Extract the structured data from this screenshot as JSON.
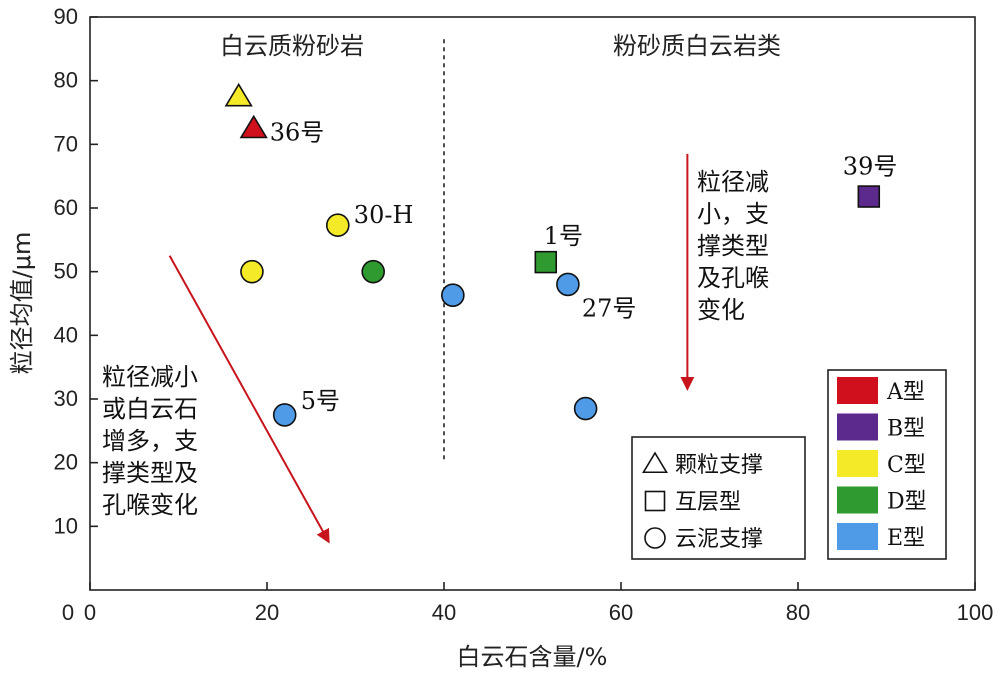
{
  "chart_data": {
    "type": "scatter",
    "xlabel": "白云石含量/%",
    "ylabel": "粒径均值/μm",
    "xlim": [
      0,
      100
    ],
    "ylim": [
      0,
      90
    ],
    "xticks": [
      0,
      20,
      40,
      60,
      80,
      100
    ],
    "yticks": [
      10,
      20,
      30,
      40,
      50,
      60,
      70,
      80,
      90
    ],
    "grid": false,
    "region_divider_x": 40,
    "regions": [
      {
        "label": "白云质粉砂岩"
      },
      {
        "label": "粉砂质白云岩类"
      }
    ],
    "type_colors": {
      "A": "#d0101c",
      "B": "#5b2a8c",
      "C": "#f5ea28",
      "D": "#2f9a2f",
      "E": "#4f9be8"
    },
    "points": [
      {
        "x": 16.8,
        "y": 77.5,
        "shape": "triangle",
        "type": "C",
        "label": ""
      },
      {
        "x": 18.5,
        "y": 72.5,
        "shape": "triangle",
        "type": "A",
        "label": "36号"
      },
      {
        "x": 18.3,
        "y": 50.0,
        "shape": "circle",
        "type": "C",
        "label": ""
      },
      {
        "x": 28.0,
        "y": 57.3,
        "shape": "circle",
        "type": "C",
        "label": "30-H"
      },
      {
        "x": 32.0,
        "y": 50.0,
        "shape": "circle",
        "type": "D",
        "label": ""
      },
      {
        "x": 22.0,
        "y": 27.5,
        "shape": "circle",
        "type": "E",
        "label": "5号"
      },
      {
        "x": 41.0,
        "y": 46.3,
        "shape": "circle",
        "type": "E",
        "label": ""
      },
      {
        "x": 51.5,
        "y": 51.5,
        "shape": "square",
        "type": "D",
        "label": "1号"
      },
      {
        "x": 54.0,
        "y": 48.0,
        "shape": "circle",
        "type": "E",
        "label": "27号"
      },
      {
        "x": 56.0,
        "y": 28.5,
        "shape": "circle",
        "type": "E",
        "label": ""
      },
      {
        "x": 88.0,
        "y": 61.8,
        "shape": "square",
        "type": "B",
        "label": "39号"
      }
    ],
    "annotations": [
      {
        "lines": [
          "粒径减小",
          "或白云石",
          "增多，支",
          "撑类型及",
          "孔喉变化"
        ]
      },
      {
        "lines": [
          "粒径减",
          "小，支",
          "撑类型",
          "及孔喉",
          "变化"
        ]
      }
    ],
    "arrows": [
      {
        "from": [
          9.0,
          52.5
        ],
        "to": [
          27.0,
          7.5
        ]
      },
      {
        "from": [
          67.5,
          68.5
        ],
        "to": [
          67.5,
          31.5
        ]
      }
    ],
    "shape_legend": [
      {
        "shape": "triangle",
        "label": "颗粒支撑"
      },
      {
        "shape": "square",
        "label": "互层型"
      },
      {
        "shape": "circle",
        "label": "云泥支撑"
      }
    ],
    "color_legend": [
      {
        "type": "A",
        "label": "A型"
      },
      {
        "type": "B",
        "label": "B型"
      },
      {
        "type": "C",
        "label": "C型"
      },
      {
        "type": "D",
        "label": "D型"
      },
      {
        "type": "E",
        "label": "E型"
      }
    ],
    "arrow_color": "#c8141c"
  }
}
